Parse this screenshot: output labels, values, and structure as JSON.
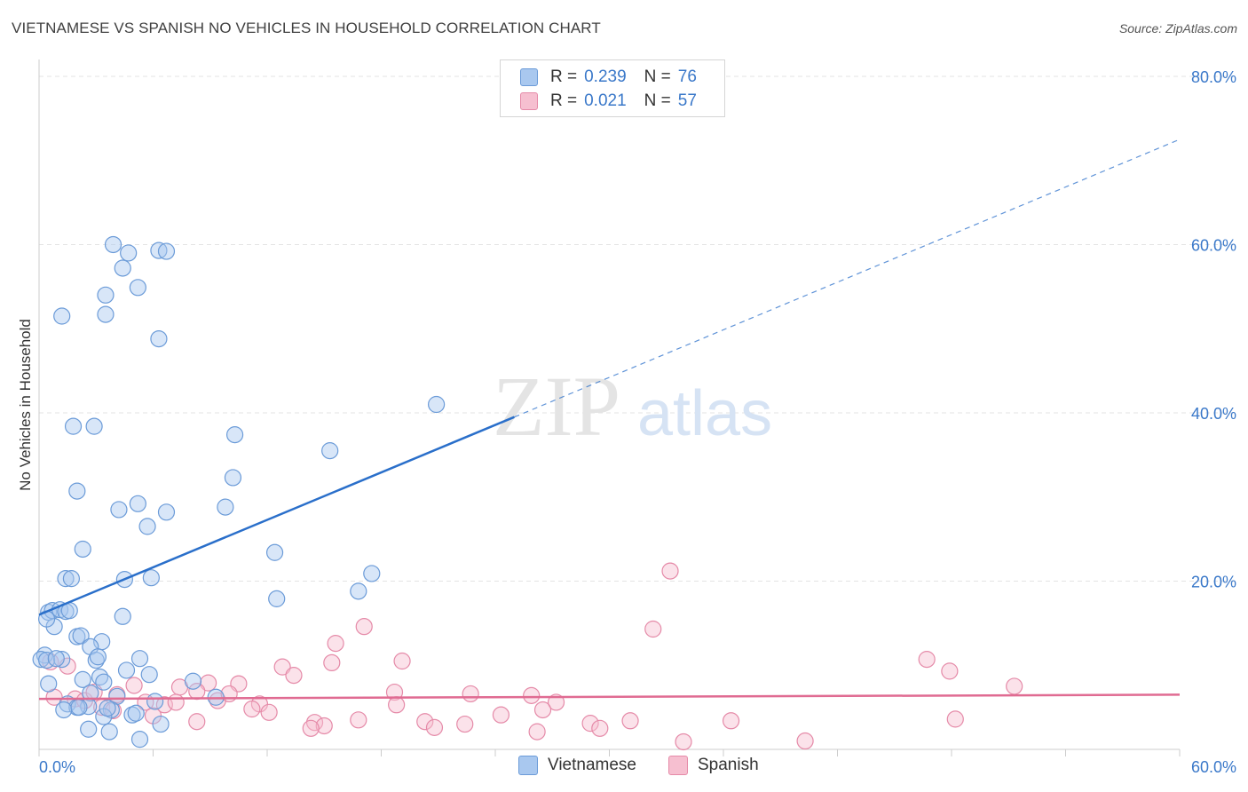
{
  "header": {
    "title": "VIETNAMESE VS SPANISH NO VEHICLES IN HOUSEHOLD CORRELATION CHART",
    "source": "Source: ZipAtlas.com"
  },
  "watermark": {
    "zip": "ZIP",
    "atlas": "atlas"
  },
  "legend": {
    "rows": [
      {
        "r_label": "R =",
        "r_value": "0.239",
        "n_label": "N =",
        "n_value": "76"
      },
      {
        "r_label": "R =",
        "r_value": "0.021",
        "n_label": "N =",
        "n_value": "57"
      }
    ]
  },
  "bottom_legend": {
    "items": [
      "Vietnamese",
      "Spanish"
    ]
  },
  "colors": {
    "vietnamese_fill": "#a9c8ef",
    "vietnamese_stroke": "#6b9bd8",
    "vietnamese_line": "#2a6fca",
    "spanish_fill": "#f6bfd0",
    "spanish_stroke": "#e58aa8",
    "spanish_line": "#e06b92",
    "grid": "#e3e3e3",
    "tick_text": "#3a78c9"
  },
  "chart_data": {
    "type": "scatter",
    "title": "VIETNAMESE VS SPANISH NO VEHICLES IN HOUSEHOLD CORRELATION CHART",
    "xlabel": "",
    "ylabel": "No Vehicles in Household",
    "xlim": [
      0,
      60
    ],
    "ylim": [
      0,
      82
    ],
    "x_tick_labels": [
      "0.0%",
      "60.0%"
    ],
    "y_tick_values": [
      20,
      40,
      60,
      80
    ],
    "y_tick_labels": [
      "20.0%",
      "40.0%",
      "60.0%",
      "80.0%"
    ],
    "grid": true,
    "legend_position": "top-center",
    "series": [
      {
        "name": "Vietnamese",
        "R": 0.239,
        "N": 76,
        "trend": {
          "x0": 0,
          "y0": 16.0,
          "x1": 25,
          "y1": 39.5,
          "dash_to_x": 60,
          "dash_to_y": 72.5
        },
        "points": [
          [
            1.2,
            51.5
          ],
          [
            3.5,
            54.0
          ],
          [
            3.5,
            51.7
          ],
          [
            3.9,
            60.0
          ],
          [
            4.4,
            57.2
          ],
          [
            4.7,
            59.0
          ],
          [
            5.2,
            54.9
          ],
          [
            6.3,
            48.8
          ],
          [
            6.3,
            59.3
          ],
          [
            6.7,
            59.2
          ],
          [
            1.8,
            38.4
          ],
          [
            2.9,
            38.4
          ],
          [
            2.0,
            30.7
          ],
          [
            4.2,
            28.5
          ],
          [
            5.2,
            29.2
          ],
          [
            5.7,
            26.5
          ],
          [
            6.7,
            28.2
          ],
          [
            10.3,
            37.4
          ],
          [
            10.2,
            32.3
          ],
          [
            9.8,
            28.8
          ],
          [
            15.3,
            35.5
          ],
          [
            20.9,
            41.0
          ],
          [
            12.4,
            23.4
          ],
          [
            12.5,
            17.9
          ],
          [
            17.5,
            20.9
          ],
          [
            16.8,
            18.8
          ],
          [
            2.3,
            23.8
          ],
          [
            1.4,
            20.3
          ],
          [
            1.7,
            20.3
          ],
          [
            4.5,
            20.2
          ],
          [
            5.9,
            20.4
          ],
          [
            4.4,
            15.8
          ],
          [
            0.5,
            16.3
          ],
          [
            0.7,
            16.5
          ],
          [
            1.1,
            16.6
          ],
          [
            1.4,
            16.4
          ],
          [
            0.8,
            14.6
          ],
          [
            0.4,
            15.5
          ],
          [
            2.0,
            13.4
          ],
          [
            2.2,
            13.5
          ],
          [
            3.3,
            12.8
          ],
          [
            2.7,
            12.2
          ],
          [
            0.3,
            11.2
          ],
          [
            0.1,
            10.7
          ],
          [
            0.4,
            10.6
          ],
          [
            1.2,
            10.7
          ],
          [
            3.0,
            10.6
          ],
          [
            5.3,
            10.8
          ],
          [
            4.6,
            9.4
          ],
          [
            5.8,
            8.9
          ],
          [
            3.2,
            8.6
          ],
          [
            2.3,
            8.3
          ],
          [
            3.4,
            8.0
          ],
          [
            8.1,
            8.1
          ],
          [
            0.5,
            7.8
          ],
          [
            2.7,
            6.7
          ],
          [
            4.1,
            6.3
          ],
          [
            9.3,
            6.2
          ],
          [
            6.1,
            5.7
          ],
          [
            2.6,
            5.1
          ],
          [
            1.5,
            5.4
          ],
          [
            2.0,
            5.0
          ],
          [
            1.3,
            4.7
          ],
          [
            3.8,
            4.7
          ],
          [
            3.4,
            3.9
          ],
          [
            4.9,
            4.1
          ],
          [
            5.1,
            4.3
          ],
          [
            6.4,
            3.0
          ],
          [
            2.6,
            2.4
          ],
          [
            3.7,
            2.1
          ],
          [
            5.3,
            1.2
          ],
          [
            3.6,
            4.9
          ],
          [
            2.1,
            5.0
          ],
          [
            0.9,
            10.8
          ],
          [
            1.6,
            16.5
          ],
          [
            3.1,
            11.0
          ]
        ]
      },
      {
        "name": "Spanish",
        "R": 0.021,
        "N": 57,
        "trend": {
          "x0": 0,
          "y0": 6.0,
          "x1": 60,
          "y1": 6.5
        },
        "points": [
          [
            33.2,
            21.2
          ],
          [
            32.3,
            14.3
          ],
          [
            17.1,
            14.6
          ],
          [
            15.6,
            12.6
          ],
          [
            15.4,
            10.3
          ],
          [
            19.1,
            10.5
          ],
          [
            46.7,
            10.7
          ],
          [
            47.9,
            9.3
          ],
          [
            12.8,
            9.8
          ],
          [
            13.4,
            8.8
          ],
          [
            51.3,
            7.5
          ],
          [
            0.6,
            10.4
          ],
          [
            3.3,
            5.0
          ],
          [
            5.0,
            7.6
          ],
          [
            7.4,
            7.4
          ],
          [
            8.9,
            7.9
          ],
          [
            10.5,
            7.8
          ],
          [
            0.8,
            6.2
          ],
          [
            1.9,
            6.0
          ],
          [
            2.4,
            5.8
          ],
          [
            2.9,
            6.8
          ],
          [
            4.1,
            6.5
          ],
          [
            5.6,
            5.6
          ],
          [
            6.6,
            5.3
          ],
          [
            7.2,
            5.6
          ],
          [
            8.3,
            6.9
          ],
          [
            9.4,
            5.8
          ],
          [
            10.0,
            6.6
          ],
          [
            11.6,
            5.4
          ],
          [
            18.7,
            6.8
          ],
          [
            18.8,
            5.3
          ],
          [
            22.7,
            6.6
          ],
          [
            25.9,
            6.4
          ],
          [
            27.2,
            5.6
          ],
          [
            11.2,
            4.8
          ],
          [
            12.1,
            4.4
          ],
          [
            3.9,
            4.6
          ],
          [
            6.0,
            4.0
          ],
          [
            8.3,
            3.3
          ],
          [
            14.5,
            3.2
          ],
          [
            15.0,
            2.8
          ],
          [
            14.3,
            2.5
          ],
          [
            16.8,
            3.5
          ],
          [
            20.3,
            3.3
          ],
          [
            20.8,
            2.6
          ],
          [
            22.4,
            3.0
          ],
          [
            24.3,
            4.1
          ],
          [
            26.2,
            2.1
          ],
          [
            29.0,
            3.1
          ],
          [
            29.5,
            2.5
          ],
          [
            31.1,
            3.4
          ],
          [
            36.4,
            3.4
          ],
          [
            48.2,
            3.6
          ],
          [
            33.9,
            0.9
          ],
          [
            40.3,
            1.0
          ],
          [
            26.5,
            4.7
          ],
          [
            1.5,
            9.9
          ]
        ]
      }
    ]
  }
}
